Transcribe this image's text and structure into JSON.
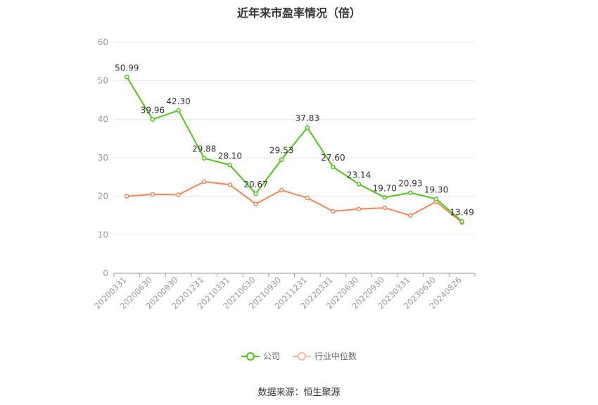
{
  "title": "近年来市盈率情况（倍）",
  "source": "数据来源：恒生聚源",
  "chart_data": {
    "type": "line",
    "title": "近年来市盈率情况（倍）",
    "categories": [
      "20200331",
      "20200630",
      "20200930",
      "20201231",
      "20210331",
      "20210630",
      "20210930",
      "20211231",
      "20220331",
      "20220630",
      "20220930",
      "20230331",
      "20230630",
      "20240826"
    ],
    "ylim": [
      0,
      60
    ],
    "yticks": [
      0,
      10,
      20,
      30,
      40,
      50,
      60
    ],
    "grid": true,
    "legend_position": "bottom",
    "series": [
      {
        "name": "公司",
        "color": "#52c41a",
        "values": [
          50.99,
          39.96,
          42.3,
          29.88,
          28.1,
          20.67,
          29.53,
          37.83,
          27.6,
          23.14,
          19.7,
          20.93,
          19.3,
          13.49
        ],
        "labels": [
          "50.99",
          "39.96",
          "42.30",
          "29.88",
          "28.10",
          "20.67",
          "29.53",
          "37.83",
          "27.60",
          "23.14",
          "19.70",
          "20.93",
          "19.30",
          "13.49"
        ]
      },
      {
        "name": "行业中位数",
        "color": "#f0875a",
        "values": [
          20.0,
          20.5,
          20.4,
          23.8,
          23.0,
          18.0,
          21.6,
          19.6,
          16.1,
          16.7,
          17.0,
          15.0,
          18.6,
          13.2
        ]
      }
    ]
  }
}
